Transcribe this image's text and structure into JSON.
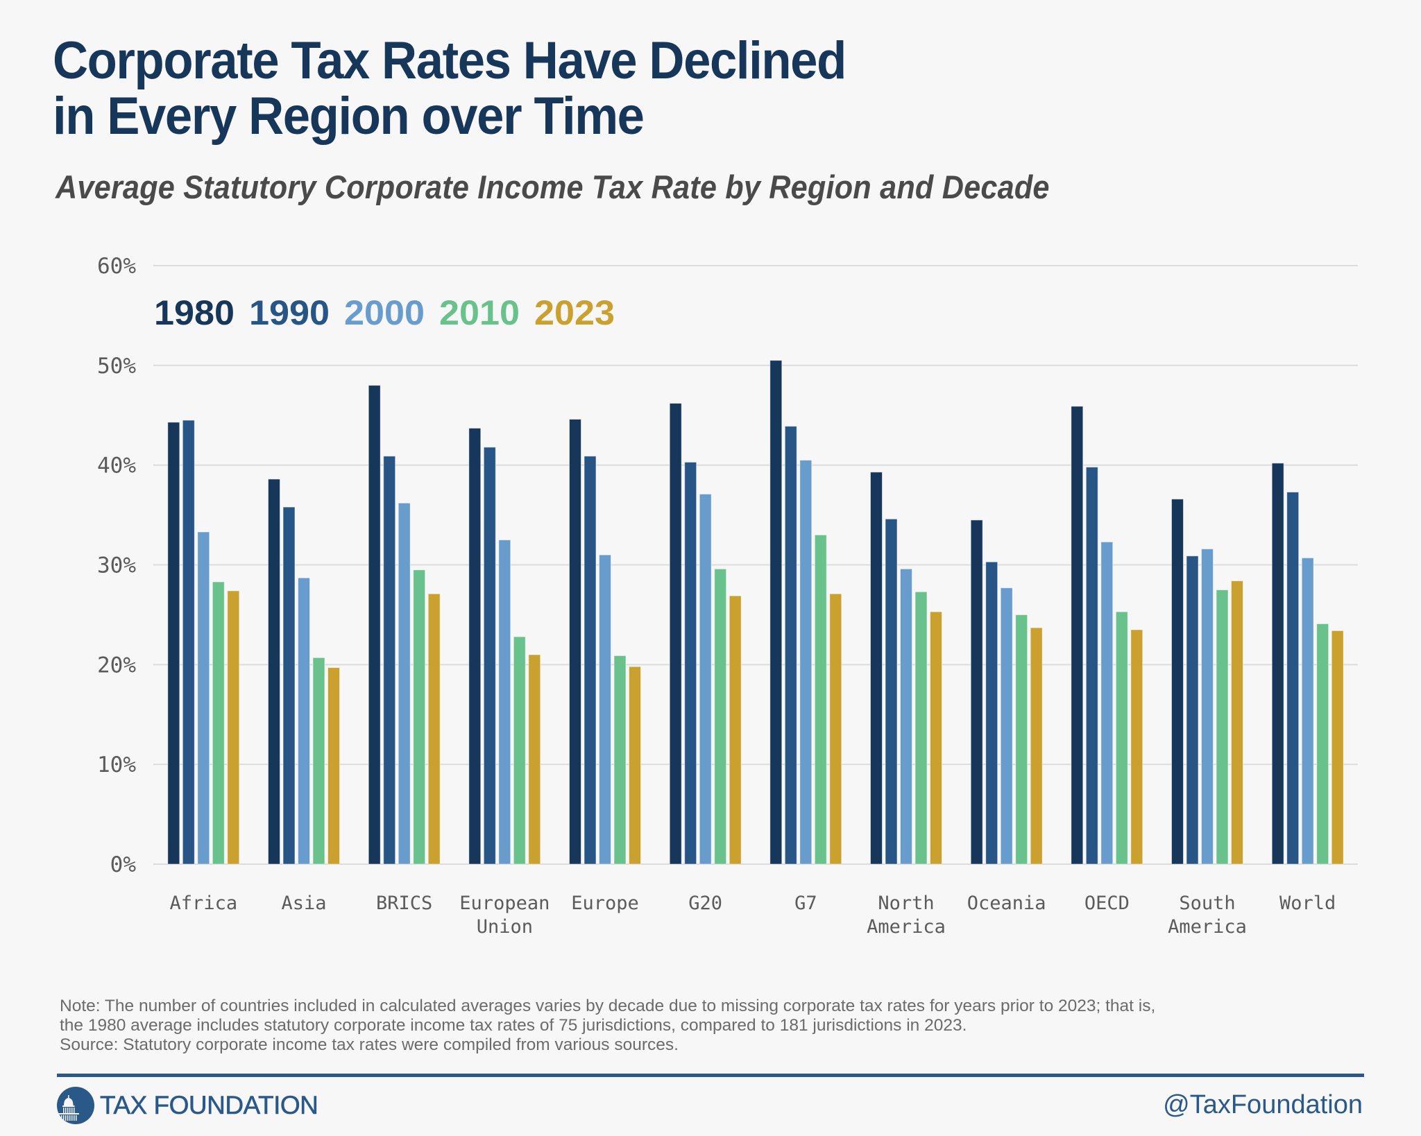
{
  "header": {
    "title_line1": "Corporate Tax Rates Have Declined",
    "title_line2": "in Every Region over Time",
    "subtitle": "Average Statutory Corporate Income Tax Rate by Region and Decade"
  },
  "colors": {
    "title": "#16365a",
    "brand": "#2a5989",
    "gridline": "#dcdcdc",
    "tick_text": "#5b5b5b",
    "note_text": "#6b6b6b",
    "background": "#f7f7f7"
  },
  "chart_data": {
    "type": "bar",
    "title": "Average Statutory Corporate Income Tax Rate by Region and Decade",
    "xlabel": "",
    "ylabel": "",
    "ylim": [
      0,
      60
    ],
    "yticks": [
      0,
      10,
      20,
      30,
      40,
      50,
      60
    ],
    "ytick_labels": [
      "0%",
      "10%",
      "20%",
      "30%",
      "40%",
      "50%",
      "60%"
    ],
    "grid": true,
    "legend_placement": "top-left",
    "categories": [
      "Africa",
      "Asia",
      "BRICS",
      "European Union",
      "Europe",
      "G20",
      "G7",
      "North America",
      "Oceania",
      "OECD",
      "South America",
      "World"
    ],
    "category_label_lines": [
      [
        "Africa"
      ],
      [
        "Asia"
      ],
      [
        "BRICS"
      ],
      [
        "European",
        "Union"
      ],
      [
        "Europe"
      ],
      [
        "G20"
      ],
      [
        "G7"
      ],
      [
        "North",
        "America"
      ],
      [
        "Oceania"
      ],
      [
        "OECD"
      ],
      [
        "South",
        "America"
      ],
      [
        "World"
      ]
    ],
    "series": [
      {
        "name": "1980",
        "color": "#16365a",
        "values": [
          44.3,
          38.6,
          48.0,
          43.7,
          44.6,
          46.2,
          50.5,
          39.3,
          34.5,
          45.9,
          36.6,
          40.2
        ]
      },
      {
        "name": "1990",
        "color": "#265586",
        "values": [
          44.5,
          35.8,
          40.9,
          41.8,
          40.9,
          40.3,
          43.9,
          34.6,
          30.3,
          39.8,
          30.9,
          37.3
        ]
      },
      {
        "name": "2000",
        "color": "#689ccd",
        "values": [
          33.3,
          28.7,
          36.2,
          32.5,
          31.0,
          37.1,
          40.5,
          29.6,
          27.7,
          32.3,
          31.6,
          30.7
        ]
      },
      {
        "name": "2010",
        "color": "#69c28c",
        "values": [
          28.3,
          20.7,
          29.5,
          22.8,
          20.9,
          29.6,
          33.0,
          27.3,
          25.0,
          25.3,
          27.5,
          24.1
        ]
      },
      {
        "name": "2023",
        "color": "#caa02e",
        "values": [
          27.4,
          19.7,
          27.1,
          21.0,
          19.8,
          26.9,
          27.1,
          25.3,
          23.7,
          23.5,
          28.4,
          23.4
        ]
      }
    ]
  },
  "notes": {
    "line1": "Note: The number of countries included in calculated averages varies by decade due to missing corporate tax rates for years prior to 2023; that is,",
    "line2": "the 1980 average includes statutory corporate income tax rates of 75 jurisdictions, compared to 181 jurisdictions in 2023.",
    "line3": "Source: Statutory corporate income tax rates were compiled from various sources."
  },
  "footer": {
    "logo_icon": "capitol-dome-icon",
    "logo_text": "TAX FOUNDATION",
    "handle": "@TaxFoundation"
  }
}
